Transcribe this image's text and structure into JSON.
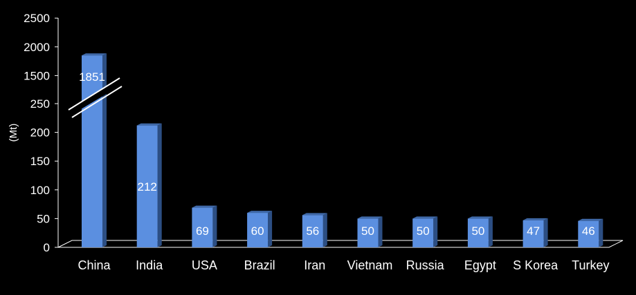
{
  "chart_data": {
    "type": "bar",
    "ylabel": "(Mt)",
    "categories": [
      "China",
      "India",
      "USA",
      "Brazil",
      "Iran",
      "Vietnam",
      "Russia",
      "Egypt",
      "S Korea",
      "Turkey"
    ],
    "values": [
      1851,
      212,
      69,
      60,
      56,
      50,
      50,
      50,
      47,
      46
    ],
    "data_labels": [
      "1851",
      "212",
      "69",
      "60",
      "56",
      "50",
      "50",
      "50",
      "47",
      "46"
    ],
    "yticks": [
      "0",
      "50",
      "100",
      "150",
      "200",
      "250",
      "1500",
      "2000",
      "2500"
    ],
    "axis_break": {
      "lower_max": 250,
      "upper_min": 1500,
      "upper_max": 2500
    },
    "grid": false,
    "colors": {
      "bar_front": "#5b8fe0",
      "bar_side": "#2c4e83",
      "bar_top": "#3f69a8",
      "background": "#000000",
      "axis": "#ffffff"
    }
  }
}
